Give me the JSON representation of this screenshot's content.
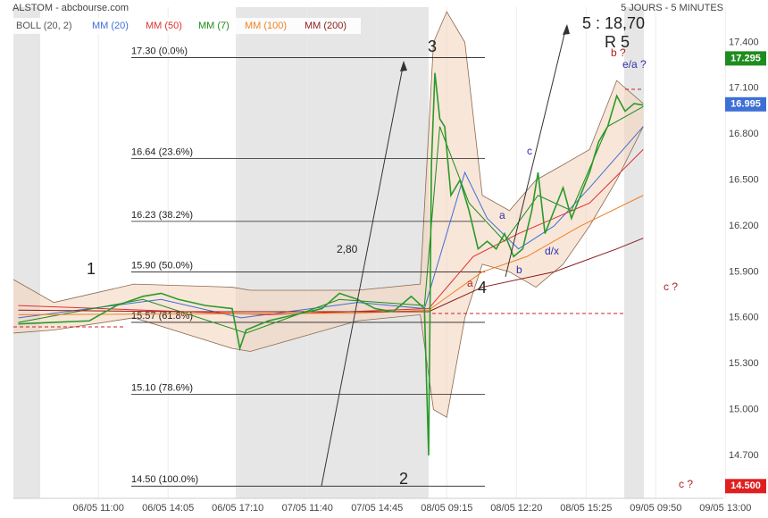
{
  "header": {
    "title": "ALSTOM - abcbourse.com",
    "period": "5 JOURS - 5 MINUTES"
  },
  "chart_data": {
    "type": "line",
    "xlim": [
      -1.22,
      8.97
    ],
    "ylim": [
      14.42,
      17.63
    ],
    "xticks": [
      {
        "value": 0,
        "label": "06/05 11:00"
      },
      {
        "value": 1,
        "label": "06/05 14:05"
      },
      {
        "value": 2,
        "label": "06/05 17:10"
      },
      {
        "value": 3,
        "label": "07/05 11:40"
      },
      {
        "value": 4,
        "label": "07/05 14:45"
      },
      {
        "value": 5,
        "label": "08/05 09:15"
      },
      {
        "value": 6,
        "label": "08/05 12:20"
      },
      {
        "value": 7,
        "label": "08/05 15:25"
      },
      {
        "value": 8,
        "label": "09/05 09:50"
      },
      {
        "value": 9,
        "label": "09/05 13:00"
      }
    ],
    "yticks": [
      {
        "value": 14.7,
        "label": "14.700"
      },
      {
        "value": 15.0,
        "label": "15.000"
      },
      {
        "value": 15.3,
        "label": "15.300"
      },
      {
        "value": 15.6,
        "label": "15.600"
      },
      {
        "value": 15.9,
        "label": "15.900"
      },
      {
        "value": 16.2,
        "label": "16.200"
      },
      {
        "value": 16.5,
        "label": "16.500"
      },
      {
        "value": 16.8,
        "label": "16.800"
      },
      {
        "value": 17.1,
        "label": "17.100"
      },
      {
        "value": 17.4,
        "label": "17.400"
      }
    ],
    "grid": true,
    "bollinger": {
      "name": "BOLL (20, 2)",
      "color": "#8a6a50",
      "x": [
        -1.22,
        -0.64,
        0.51,
        1.92,
        2.18,
        3.72,
        4.62,
        4.81,
        5.0,
        5.26,
        5.51,
        5.9,
        6.28,
        6.67,
        7.05,
        7.44,
        7.82
      ],
      "upper": [
        15.85,
        15.7,
        15.82,
        15.8,
        15.78,
        15.78,
        15.82,
        17.4,
        17.6,
        17.4,
        16.4,
        16.3,
        16.5,
        16.6,
        16.7,
        17.15,
        17.0
      ],
      "lower": [
        15.5,
        15.52,
        15.6,
        15.4,
        15.38,
        15.58,
        15.62,
        15.0,
        14.95,
        15.6,
        15.95,
        15.9,
        15.8,
        15.95,
        16.2,
        16.5,
        16.85
      ]
    },
    "price": {
      "color": "#2a9a2a",
      "x": [
        -1.15,
        -0.64,
        -0.13,
        0.26,
        0.64,
        0.9,
        1.15,
        1.54,
        1.92,
        2.03,
        2.12,
        2.44,
        2.82,
        3.21,
        3.46,
        3.72,
        3.97,
        4.23,
        4.49,
        4.68,
        4.74,
        4.78,
        4.83,
        4.9,
        4.97,
        5.06,
        5.19,
        5.32,
        5.45,
        5.58,
        5.71,
        5.83,
        5.96,
        6.09,
        6.22,
        6.31,
        6.41,
        6.54,
        6.67,
        6.79,
        6.92,
        7.05,
        7.18,
        7.31,
        7.44,
        7.56,
        7.69,
        7.82
      ],
      "values": [
        15.56,
        15.57,
        15.58,
        15.68,
        15.74,
        15.76,
        15.72,
        15.68,
        15.66,
        15.4,
        15.52,
        15.58,
        15.62,
        15.66,
        15.76,
        15.72,
        15.66,
        15.64,
        15.74,
        15.66,
        14.7,
        16.6,
        17.2,
        16.9,
        16.85,
        16.4,
        16.5,
        16.3,
        16.05,
        16.1,
        16.05,
        16.15,
        16.0,
        16.05,
        16.3,
        16.55,
        16.15,
        16.3,
        16.45,
        16.25,
        16.4,
        16.55,
        16.75,
        16.85,
        17.05,
        16.95,
        17.0,
        16.99
      ]
    },
    "series": [
      {
        "name": "MM (20)",
        "color": "#3d6fd6",
        "x": [
          -1.15,
          0.9,
          2.05,
          3.72,
          4.68,
          5.26,
          5.58,
          6.03,
          6.54,
          7.05,
          7.82
        ],
        "values": [
          15.6,
          15.72,
          15.6,
          15.7,
          15.66,
          16.55,
          16.25,
          16.05,
          16.2,
          16.45,
          16.85
        ]
      },
      {
        "name": "MM (50)",
        "color": "#e03030",
        "x": [
          -1.15,
          2.44,
          4.74,
          5.38,
          6.03,
          7.05,
          7.82
        ],
        "values": [
          15.68,
          15.62,
          15.66,
          16.0,
          16.15,
          16.35,
          16.7
        ]
      },
      {
        "name": "MM (7)",
        "color": "#1a8c1a",
        "x": [
          -1.15,
          0.64,
          2.12,
          3.46,
          4.68,
          4.9,
          5.32,
          5.83,
          6.31,
          6.79,
          7.31,
          7.82
        ],
        "values": [
          15.57,
          15.72,
          15.5,
          15.72,
          15.68,
          16.85,
          16.35,
          16.1,
          16.4,
          16.3,
          16.85,
          16.98
        ]
      },
      {
        "name": "MM (100)",
        "color": "#f08020",
        "x": [
          -1.15,
          3.72,
          4.74,
          5.51,
          6.15,
          6.92,
          7.82
        ],
        "values": [
          15.62,
          15.63,
          15.65,
          15.9,
          16.0,
          16.2,
          16.4
        ]
      },
      {
        "name": "MM (200)",
        "color": "#8b1a1a",
        "x": [
          -1.15,
          1.15,
          3.72,
          4.74,
          5.51,
          6.54,
          7.44,
          7.82
        ],
        "values": [
          15.65,
          15.64,
          15.64,
          15.64,
          15.8,
          15.9,
          16.05,
          16.12
        ]
      }
    ],
    "fibonacci": [
      {
        "value": 17.3,
        "label": "17.30  (0.0%)"
      },
      {
        "value": 16.64,
        "label": "16.64  (23.6%)"
      },
      {
        "value": 16.23,
        "label": "16.23  (38.2%)"
      },
      {
        "value": 15.9,
        "label": "15.90  (50.0%)"
      },
      {
        "value": 15.57,
        "label": "15.57  (61.8%)"
      },
      {
        "value": 15.1,
        "label": "15.10  (78.6%)"
      },
      {
        "value": 14.5,
        "label": "14.50  (100.0%)"
      }
    ],
    "price_markers": [
      {
        "value": 17.295,
        "label": "17.295",
        "color": "#1e8c1e"
      },
      {
        "value": 16.995,
        "label": "16.995",
        "color": "#3d6fd6"
      },
      {
        "value": 14.5,
        "label": "14.500",
        "color": "#e02020"
      }
    ],
    "annotations": [
      "1",
      "2",
      "3",
      "4",
      "5 : 18,70",
      "R 5",
      "2,80",
      "a",
      "a",
      "b",
      "c",
      "d/x",
      "b ?",
      "e/a ?",
      "c ?",
      "c ?"
    ]
  }
}
